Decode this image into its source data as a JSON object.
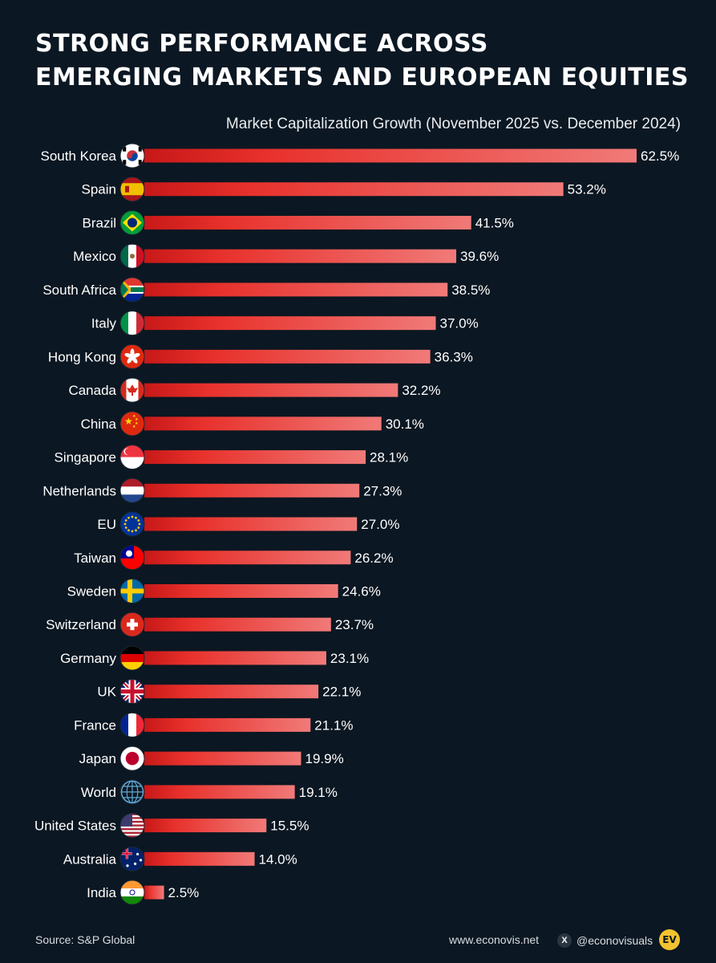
{
  "title_lines": [
    "STRONG PERFORMANCE ACROSS",
    "EMERGING MARKETS AND EUROPEAN EQUITIES"
  ],
  "subtitle": "Market Capitalization Growth (November 2025 vs. December 2024)",
  "colors": {
    "background": "#0b1722",
    "bar_start": "#c71818",
    "bar_mid": "#e8312c",
    "bar_end": "#f07a78",
    "text": "#ffffff"
  },
  "chart_data": {
    "type": "bar",
    "orientation": "horizontal",
    "title": "Market Capitalization Growth (November 2025 vs. December 2024)",
    "categories": [
      "South Korea",
      "Spain",
      "Brazil",
      "Mexico",
      "South Africa",
      "Italy",
      "Hong Kong",
      "Canada",
      "China",
      "Singapore",
      "Netherlands",
      "EU",
      "Taiwan",
      "Sweden",
      "Switzerland",
      "Germany",
      "UK",
      "France",
      "Japan",
      "World",
      "United States",
      "Australia",
      "India"
    ],
    "values": [
      62.5,
      53.2,
      41.5,
      39.6,
      38.5,
      37.0,
      36.3,
      32.2,
      30.1,
      28.1,
      27.3,
      27.0,
      26.2,
      24.6,
      23.7,
      23.1,
      22.1,
      21.1,
      19.9,
      19.1,
      15.5,
      14.0,
      2.5
    ],
    "value_labels": [
      "62.5%",
      "53.2%",
      "41.5%",
      "39.6%",
      "38.5%",
      "37.0%",
      "36.3%",
      "32.2%",
      "30.1%",
      "28.1%",
      "27.3%",
      "27.0%",
      "26.2%",
      "24.6%",
      "23.7%",
      "23.1%",
      "22.1%",
      "21.1%",
      "19.9%",
      "19.1%",
      "15.5%",
      "14.0%",
      "2.5%"
    ],
    "icons": [
      "flag-south-korea-icon",
      "flag-spain-icon",
      "flag-brazil-icon",
      "flag-mexico-icon",
      "flag-south-africa-icon",
      "flag-italy-icon",
      "flag-hong-kong-icon",
      "flag-canada-icon",
      "flag-china-icon",
      "flag-singapore-icon",
      "flag-netherlands-icon",
      "flag-eu-icon",
      "flag-taiwan-icon",
      "flag-sweden-icon",
      "flag-switzerland-icon",
      "flag-germany-icon",
      "flag-uk-icon",
      "flag-france-icon",
      "flag-japan-icon",
      "globe-icon",
      "flag-united-states-icon",
      "flag-australia-icon",
      "flag-india-icon"
    ],
    "xlim": [
      0,
      62.5
    ],
    "grid": false,
    "legend": "none"
  },
  "footer": {
    "source": "Source: S&P Global",
    "website": "www.econovis.net",
    "handle": "@econovisuals",
    "logo_text": "EV"
  }
}
